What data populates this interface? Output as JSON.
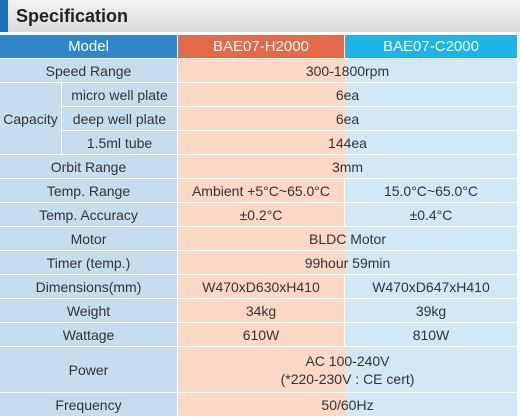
{
  "title": "Specification",
  "header": [
    "Model",
    "BAE07-H2000",
    "BAE07-C2000"
  ],
  "rows": [
    {
      "label": "Speed Range",
      "values": [
        "300-1800rpm"
      ]
    },
    {
      "label": "Capacity",
      "sub": [
        {
          "label": "micro well plate",
          "values": [
            "6ea"
          ]
        },
        {
          "label": "deep well plate",
          "values": [
            "6ea"
          ]
        },
        {
          "label": "1.5ml tube",
          "values": [
            "144ea"
          ]
        }
      ]
    },
    {
      "label": "Orbit Range",
      "values": [
        "3mm"
      ]
    },
    {
      "label": "Temp. Range",
      "values": [
        "Ambient +5°C~65.0°C",
        "15.0°C~65.0°C"
      ]
    },
    {
      "label": "Temp. Accuracy",
      "values": [
        "±0.2°C",
        "±0.4°C"
      ]
    },
    {
      "label": "Motor",
      "values": [
        "BLDC Motor"
      ]
    },
    {
      "label": "Timer (temp.)",
      "values": [
        "99hour 59min"
      ]
    },
    {
      "label": "Dimensions(mm)",
      "values": [
        "W470xD630xH410",
        "W470xD647xH410"
      ]
    },
    {
      "label": "Weight",
      "values": [
        "34kg",
        "39kg"
      ]
    },
    {
      "label": "Wattage",
      "values": [
        "610W",
        "810W"
      ]
    },
    {
      "label": "Power",
      "values": [
        [
          "AC 100-240V",
          "(*220-230V : CE cert)"
        ]
      ]
    },
    {
      "label": "Frequency",
      "values": [
        "50/60Hz"
      ]
    }
  ]
}
